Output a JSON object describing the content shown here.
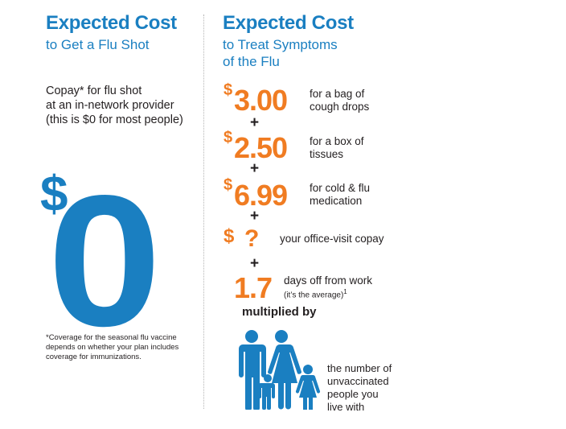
{
  "left": {
    "title_line1": "Expected Cost",
    "title_line2": "to Get a Flu Shot",
    "copay_lines": [
      "Copay* for flu shot",
      "at an in-network provider",
      "(this is $0 for most people)"
    ],
    "big_dollar": "$",
    "big_zero": "0",
    "footnote_lines": [
      "*Coverage for the seasonal flu vaccine",
      "depends on whether your plan includes",
      "coverage for immunizations."
    ]
  },
  "right": {
    "title_line1": "Expected Cost",
    "title_line2": "to Treat Symptoms",
    "title_line3": "of the Flu",
    "costs": [
      {
        "dollar": "$",
        "amount": "3.00",
        "desc_lines": [
          "for a bag of",
          "cough drops"
        ]
      },
      {
        "dollar": "$",
        "amount": "2.50",
        "desc_lines": [
          "for a box of",
          "tissues"
        ]
      },
      {
        "dollar": "$",
        "amount": "6.99",
        "desc_lines": [
          "for cold & flu",
          "medication"
        ]
      },
      {
        "dollar": "$",
        "amount": "?",
        "desc_lines": [
          "your office-visit copay"
        ]
      }
    ],
    "plus": "+",
    "days": {
      "amount": "1.7",
      "desc_line1": "days off from work",
      "desc_line2": "(it’s the average)",
      "superscript": "1"
    },
    "multiplied_by": "multiplied by",
    "family_lines": [
      "the number of",
      "unvaccinated",
      "people you",
      "live with"
    ],
    "family_icon": "family-icon"
  },
  "colors": {
    "blue": "#1a7fc1",
    "orange": "#f07c22",
    "text": "#231f20"
  }
}
